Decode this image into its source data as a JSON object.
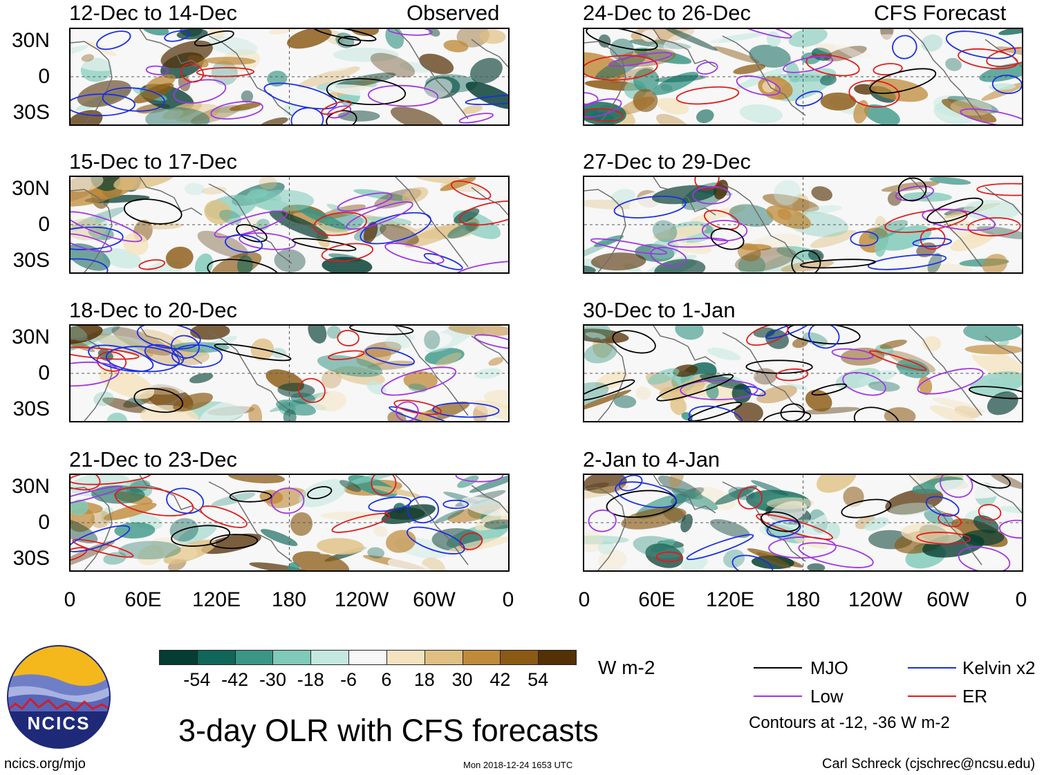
{
  "panels": [
    {
      "title": "12-Dec to 14-Dec",
      "label": "Observed"
    },
    {
      "title": "24-Dec to 26-Dec",
      "label": "CFS Forecast"
    },
    {
      "title": "15-Dec to 17-Dec",
      "label": ""
    },
    {
      "title": "27-Dec to 29-Dec",
      "label": ""
    },
    {
      "title": "18-Dec to 20-Dec",
      "label": ""
    },
    {
      "title": "30-Dec to 1-Jan",
      "label": ""
    },
    {
      "title": "21-Dec to 23-Dec",
      "label": ""
    },
    {
      "title": "2-Jan to 4-Jan",
      "label": ""
    }
  ],
  "lat_labels": [
    "30N",
    "0",
    "30S"
  ],
  "lon_labels": [
    "0",
    "60E",
    "120E",
    "180",
    "120W",
    "60W",
    "0"
  ],
  "colorbar": {
    "colors": [
      "#053d32",
      "#0f6659",
      "#3a9686",
      "#7fcab9",
      "#c4e8df",
      "#f7f7f7",
      "#f4e3bf",
      "#dfc082",
      "#bf8a3a",
      "#8b5a14",
      "#543005"
    ],
    "ticks": [
      "-54",
      "-42",
      "-30",
      "-18",
      "-6",
      "6",
      "18",
      "30",
      "42",
      "54"
    ],
    "unit": "W m-2"
  },
  "legend": {
    "items": [
      {
        "label": "MJO",
        "color": "#000000"
      },
      {
        "label": "Kelvin x2",
        "color": "#1a2ee6"
      },
      {
        "label": "Low",
        "color": "#a035e6"
      },
      {
        "label": "ER",
        "color": "#e11b1b"
      }
    ],
    "note": "Contours at -12, -36 W m-2"
  },
  "logo": {
    "text": "NCICS"
  },
  "main_title": "3-day OLR with CFS forecasts",
  "footer": {
    "url": "ncics.org/mjo",
    "timestamp": "Mon 2018-12-24 1653 UTC",
    "credit": "Carl Schreck (cjschrec@ncsu.edu)"
  }
}
